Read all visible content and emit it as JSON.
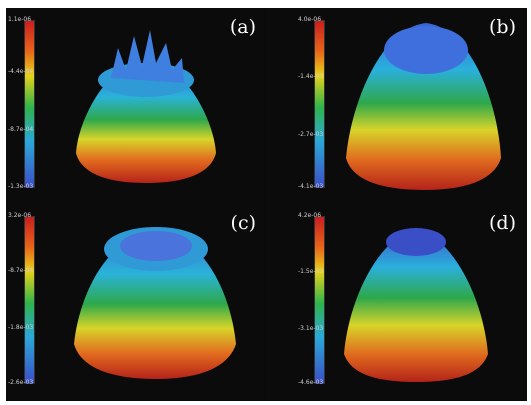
{
  "panels": [
    {
      "label": "(a)",
      "ticks": [
        "1.1e-06",
        "-4.4e-04",
        "-8.7e-04",
        "-1.3e-03"
      ]
    },
    {
      "label": "(b)",
      "ticks": [
        "4.0e-06",
        "-1.4e-03",
        "-2.7e-03",
        "-4.1e-03"
      ]
    },
    {
      "label": "(c)",
      "ticks": [
        "3.2e-06",
        "-8.7e-04",
        "-1.8e-03",
        "-2.6e-03"
      ]
    },
    {
      "label": "(d)",
      "ticks": [
        "4.2e-06",
        "-1.5e-03",
        "-3.1e-03",
        "-4.6e-03"
      ]
    }
  ]
}
